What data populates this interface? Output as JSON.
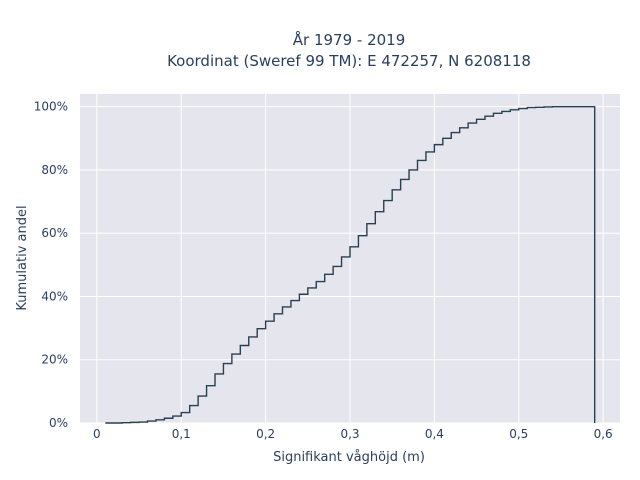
{
  "chart_data": {
    "type": "line",
    "title": "År 1979 - 2019",
    "subtitle": "Koordinat (Sweref 99 TM): E 472257, N 6208118",
    "xlabel": "Signifikant våghöjd (m)",
    "ylabel": "Kumulativ andel",
    "xlim": [
      -0.02,
      0.62
    ],
    "ylim": [
      0,
      1.04
    ],
    "x_ticks": [
      0,
      0.1,
      0.2,
      0.3,
      0.4,
      0.5,
      0.6
    ],
    "x_tick_labels": [
      "0",
      "0,1",
      "0,2",
      "0,3",
      "0,4",
      "0,5",
      "0,6"
    ],
    "y_ticks": [
      0,
      0.2,
      0.4,
      0.6,
      0.8,
      1.0
    ],
    "y_tick_labels": [
      "0%",
      "20%",
      "40%",
      "60%",
      "80%",
      "100%"
    ],
    "grid": true,
    "line_color": "#2a3f4f",
    "background_color": "#e5e5ee",
    "step_width": 0.01,
    "x": [
      0.01,
      0.02,
      0.03,
      0.04,
      0.05,
      0.06,
      0.07,
      0.08,
      0.09,
      0.1,
      0.11,
      0.12,
      0.13,
      0.14,
      0.15,
      0.16,
      0.17,
      0.18,
      0.19,
      0.2,
      0.21,
      0.22,
      0.23,
      0.24,
      0.25,
      0.26,
      0.27,
      0.28,
      0.29,
      0.3,
      0.31,
      0.32,
      0.33,
      0.34,
      0.35,
      0.36,
      0.37,
      0.38,
      0.39,
      0.4,
      0.41,
      0.42,
      0.43,
      0.44,
      0.45,
      0.46,
      0.47,
      0.48,
      0.49,
      0.5,
      0.51,
      0.52,
      0.53,
      0.54,
      0.55,
      0.56,
      0.57,
      0.58,
      0.59
    ],
    "y": [
      0.0,
      0.0,
      0.001,
      0.002,
      0.003,
      0.006,
      0.01,
      0.015,
      0.022,
      0.033,
      0.055,
      0.085,
      0.118,
      0.155,
      0.188,
      0.218,
      0.245,
      0.272,
      0.298,
      0.322,
      0.345,
      0.367,
      0.387,
      0.407,
      0.427,
      0.447,
      0.47,
      0.495,
      0.525,
      0.557,
      0.592,
      0.63,
      0.668,
      0.703,
      0.737,
      0.77,
      0.8,
      0.83,
      0.857,
      0.88,
      0.9,
      0.918,
      0.933,
      0.948,
      0.96,
      0.97,
      0.979,
      0.985,
      0.99,
      0.994,
      0.997,
      0.998,
      0.999,
      1.0,
      1.0,
      1.0,
      1.0,
      1.0,
      1.0
    ]
  }
}
